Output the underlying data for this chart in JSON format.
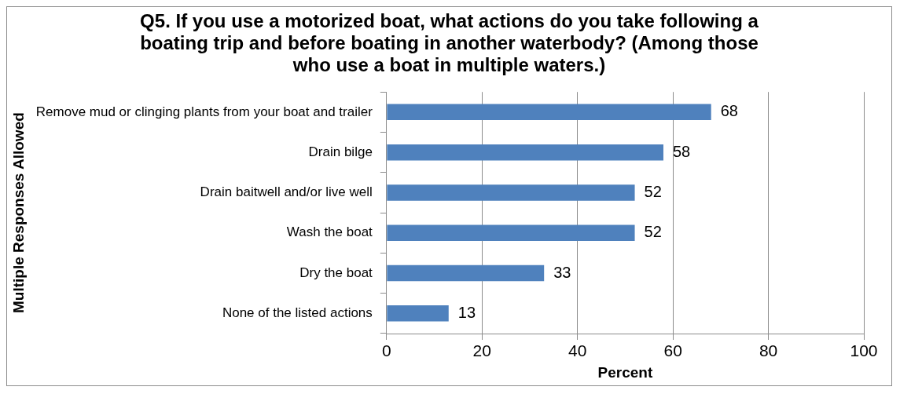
{
  "chart_data": {
    "type": "bar",
    "orientation": "horizontal",
    "title": "Q5. If you use a motorized boat, what actions do you take following a boating trip and before boating in another waterbody? (Among those who use a boat in multiple waters.)",
    "categories": [
      "Remove mud or clinging plants from your boat and trailer",
      "Drain bilge",
      "Drain baitwell and/or live well",
      "Wash the boat",
      "Dry the boat",
      "None of the listed actions"
    ],
    "values": [
      68,
      58,
      52,
      52,
      33,
      13
    ],
    "color": "#4f81bd",
    "xlabel": "Percent",
    "ylabel": "Multiple Responses Allowed",
    "xlim": [
      0,
      100
    ],
    "xticks": [
      0,
      20,
      40,
      60,
      80,
      100
    ],
    "grid": "x",
    "legend": false,
    "data_labels": true
  }
}
